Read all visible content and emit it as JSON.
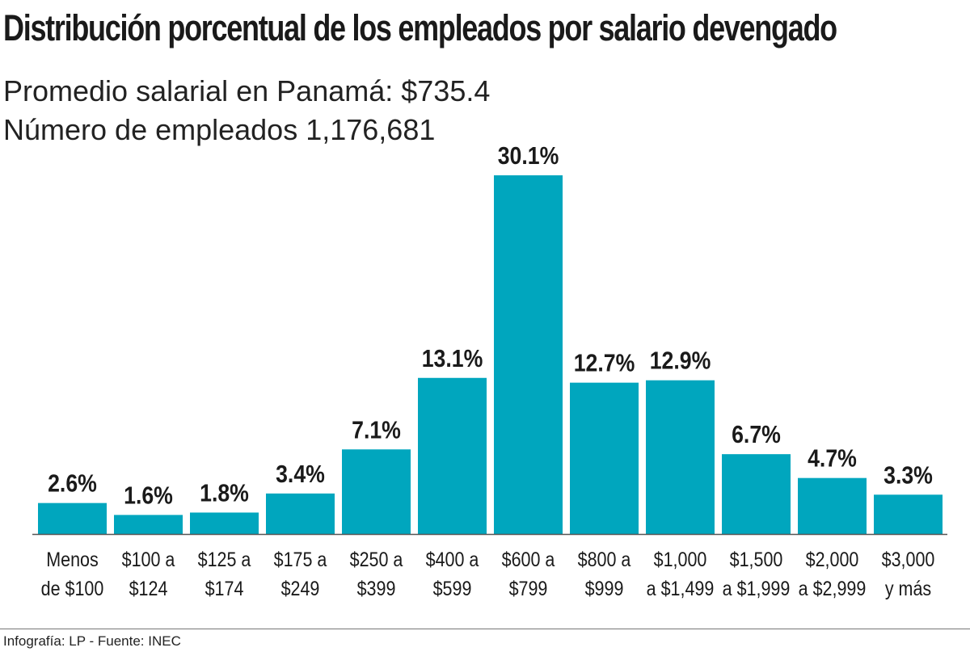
{
  "header": {
    "title": "Distribución porcentual de los empleados por salario devengado",
    "subtitle_line1": "Promedio salarial en Panamá: $735.4",
    "subtitle_line2": "Número de empleados 1,176,681"
  },
  "footer": {
    "credit": "Infografía: LP - Fuente: INEC"
  },
  "colors": {
    "bar": "#00a6be",
    "axis": "#555555",
    "text": "#1a1a1a"
  },
  "chart_data": {
    "type": "bar",
    "title": "Distribución porcentual de los empleados por salario devengado",
    "xlabel": "",
    "ylabel": "",
    "unit": "%",
    "ylim": [
      0,
      30.1
    ],
    "grid": false,
    "legend": "none",
    "categories": [
      [
        "Menos",
        "de $100"
      ],
      [
        "$100 a",
        "$124"
      ],
      [
        "$125 a",
        "$174"
      ],
      [
        "$175 a",
        "$249"
      ],
      [
        "$250 a",
        "$399"
      ],
      [
        "$400 a",
        "$599"
      ],
      [
        "$600 a",
        "$799"
      ],
      [
        "$800 a",
        "$999"
      ],
      [
        "$1,000",
        "a $1,499"
      ],
      [
        "$1,500",
        "a $1,999"
      ],
      [
        "$2,000",
        "a $2,999"
      ],
      [
        "$3,000",
        "y más"
      ]
    ],
    "values": [
      2.6,
      1.6,
      1.8,
      3.4,
      7.1,
      13.1,
      30.1,
      12.7,
      12.9,
      6.7,
      4.7,
      3.3
    ],
    "value_labels": [
      "2.6%",
      "1.6%",
      "1.8%",
      "3.4%",
      "7.1%",
      "13.1%",
      "30.1%",
      "12.7%",
      "12.9%",
      "6.7%",
      "4.7%",
      "3.3%"
    ]
  }
}
